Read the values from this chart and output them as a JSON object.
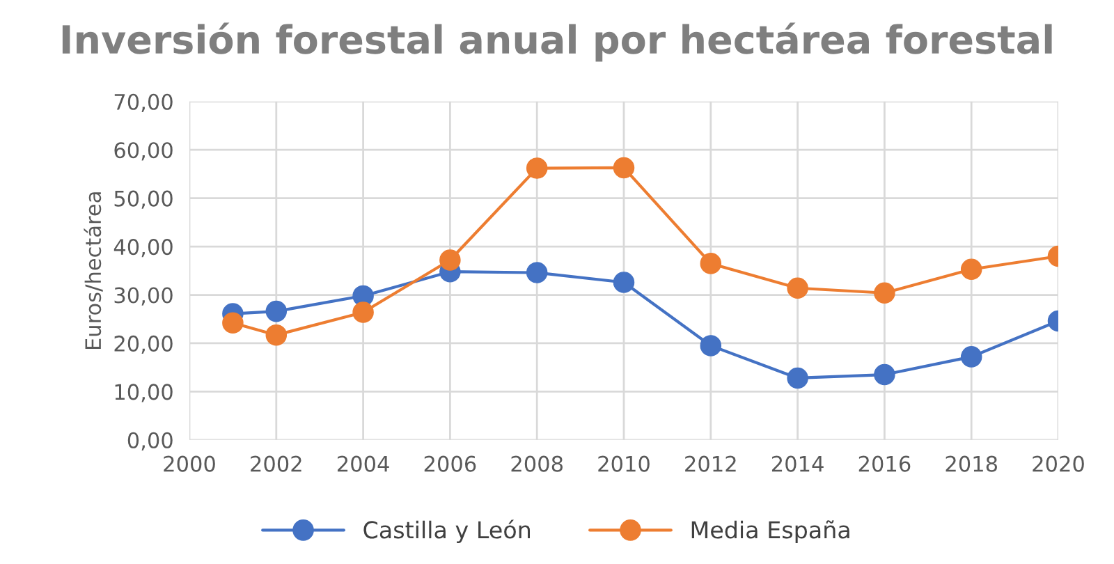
{
  "chart_data": {
    "type": "line",
    "title": "Inversión forestal anual por hectárea forestal",
    "ylabel": "Euros/hectárea",
    "x": [
      2001,
      2002,
      2004,
      2006,
      2008,
      2010,
      2012,
      2014,
      2016,
      2018,
      2020
    ],
    "series": [
      {
        "name": "Castilla y León",
        "color": "#4472c4",
        "values": [
          26.1,
          26.6,
          29.8,
          34.8,
          34.6,
          32.6,
          19.5,
          12.8,
          13.5,
          17.2,
          24.6
        ]
      },
      {
        "name": "Media España",
        "color": "#ed7d31",
        "values": [
          24.2,
          21.7,
          26.4,
          37.2,
          56.2,
          56.3,
          36.5,
          31.4,
          30.4,
          35.3,
          38.0
        ]
      }
    ],
    "xlim": [
      2000,
      2020
    ],
    "xticks": [
      2000,
      2002,
      2004,
      2006,
      2008,
      2010,
      2012,
      2014,
      2016,
      2018,
      2020
    ],
    "ylim": [
      0,
      70
    ],
    "yticks": [
      {
        "value": 0,
        "label": "0,00"
      },
      {
        "value": 10,
        "label": "10,00"
      },
      {
        "value": 20,
        "label": "20,00"
      },
      {
        "value": 30,
        "label": "30,00"
      },
      {
        "value": 40,
        "label": "40,00"
      },
      {
        "value": 50,
        "label": "50,00"
      },
      {
        "value": 60,
        "label": "60,00"
      },
      {
        "value": 70,
        "label": "70,00"
      }
    ],
    "grid": true,
    "legend": "bottom",
    "marker": "circle",
    "line_style": "solid"
  }
}
